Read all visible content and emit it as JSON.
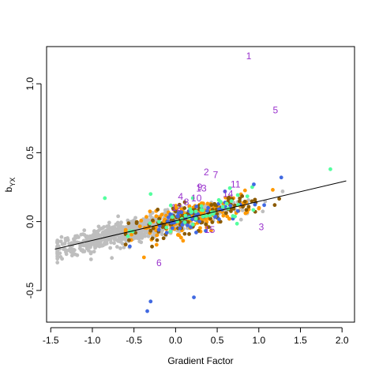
{
  "chart_data": {
    "type": "scatter",
    "xlabel": "Gradient Factor",
    "ylabel_main": "b",
    "ylabel_sub": "YX",
    "xlim": [
      -1.55,
      2.15
    ],
    "ylim": [
      -0.73,
      1.27
    ],
    "xticks": [
      -1.5,
      -1.0,
      -0.5,
      0.0,
      0.5,
      1.0,
      1.5,
      2.0
    ],
    "xtick_labels": [
      "-1.5",
      "-1.0",
      "-0.5",
      "0.0",
      "0.5",
      "1.0",
      "1.5",
      "2.0"
    ],
    "yticks": [
      -0.5,
      0.0,
      0.5,
      1.0
    ],
    "ytick_labels": [
      "-0.5",
      "0.0",
      "0.5",
      "1.0"
    ],
    "grid": false,
    "regression_line": {
      "x": [
        -1.45,
        2.05
      ],
      "y": [
        -0.2,
        0.295
      ],
      "color": "#000000"
    },
    "annotation_color": "#9a32cd",
    "annotations": [
      {
        "label": "1",
        "x": 0.88,
        "y": 1.2
      },
      {
        "label": "2",
        "x": 0.37,
        "y": 0.36
      },
      {
        "label": "3",
        "x": 1.03,
        "y": -0.04
      },
      {
        "label": "4",
        "x": 0.06,
        "y": 0.18
      },
      {
        "label": "5",
        "x": 1.2,
        "y": 0.81
      },
      {
        "label": "6",
        "x": -0.2,
        "y": -0.3
      },
      {
        "label": "7",
        "x": 0.48,
        "y": 0.34
      },
      {
        "label": "8",
        "x": 0.13,
        "y": 0.14
      },
      {
        "label": "9",
        "x": 0.29,
        "y": 0.25
      },
      {
        "label": "10",
        "x": 0.25,
        "y": 0.17
      },
      {
        "label": "11",
        "x": 0.72,
        "y": 0.27
      },
      {
        "label": "12",
        "x": 0.01,
        "y": 0.1
      },
      {
        "label": "13",
        "x": 0.31,
        "y": 0.24
      },
      {
        "label": "14",
        "x": 0.63,
        "y": 0.2
      },
      {
        "label": "15",
        "x": 0.41,
        "y": -0.06
      }
    ],
    "outlier_points": [
      {
        "x": -0.85,
        "y": 0.17,
        "color": "#54ff9f"
      },
      {
        "x": -0.3,
        "y": -0.58,
        "color": "#4169e1"
      },
      {
        "x": -0.34,
        "y": -0.65,
        "color": "#4169e1"
      },
      {
        "x": 0.22,
        "y": -0.55,
        "color": "#4169e1"
      },
      {
        "x": 1.27,
        "y": 0.32,
        "color": "#4169e1"
      },
      {
        "x": 1.86,
        "y": 0.38,
        "color": "#54ff9f"
      },
      {
        "x": 0.94,
        "y": 0.27,
        "color": "#4169e1"
      },
      {
        "x": -0.38,
        "y": -0.26,
        "color": "#ff9900"
      },
      {
        "x": -0.55,
        "y": -0.18,
        "color": "#4169e1"
      },
      {
        "x": -0.3,
        "y": 0.2,
        "color": "#54ff9f"
      }
    ],
    "series_colors": {
      "background": "#bebebe",
      "orange": "#ff9900",
      "brown": "#8b5a00",
      "blue": "#4169e1",
      "green": "#54ff9f"
    }
  }
}
